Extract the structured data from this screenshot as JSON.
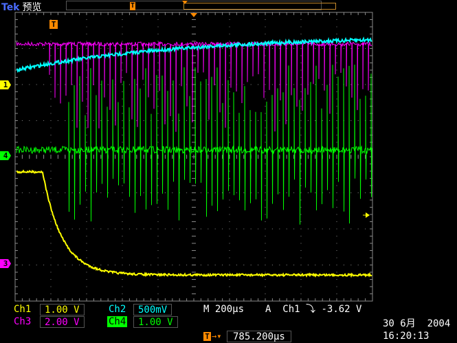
{
  "header": {
    "brand": "Tek",
    "mode": "预览"
  },
  "markers": {
    "trigger_pos": "T",
    "ch1": "1",
    "ch4": "4",
    "ch3": "3",
    "trigger_point": "T"
  },
  "channels": [
    {
      "id": "ch1",
      "label": "Ch1",
      "scale": "1.00 V",
      "color": "#ffff00"
    },
    {
      "id": "ch2",
      "label": "Ch2",
      "scale": "500mV",
      "color": "#00ffff"
    },
    {
      "id": "ch3",
      "label": "Ch3",
      "scale": "2.00 V",
      "color": "#ff00ff"
    },
    {
      "id": "ch4",
      "label": "Ch4",
      "scale": "1.00 V",
      "color": "#00ff00"
    }
  ],
  "timebase": {
    "prefix": "M",
    "value": "200µs"
  },
  "trigger": {
    "prefix": "A",
    "source": "Ch1",
    "slope": "⤵",
    "level": "-3.62 V"
  },
  "position": {
    "value": "785.200µs"
  },
  "datetime": {
    "date": "30 6月  2004",
    "time": "16:20:13"
  },
  "colors": {
    "grid": "#8a8a8a",
    "accent": "#ff8a00"
  }
}
